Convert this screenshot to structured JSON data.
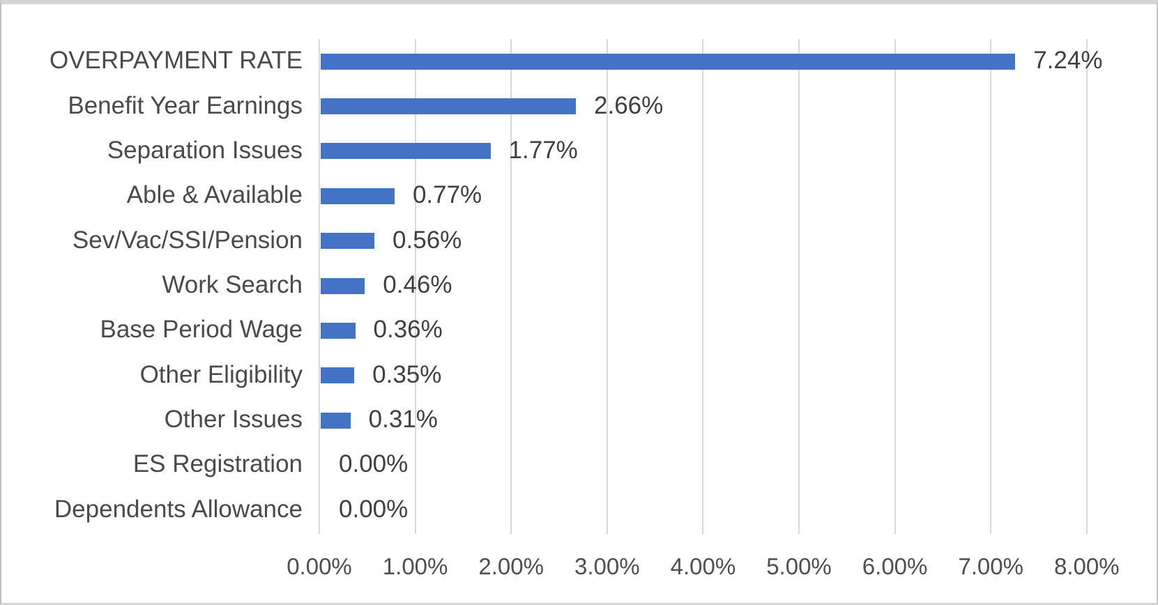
{
  "chart_data": {
    "type": "bar",
    "orientation": "horizontal",
    "title": "",
    "categories": [
      "OVERPAYMENT RATE",
      "Benefit Year Earnings",
      "Separation Issues",
      "Able & Available",
      "Sev/Vac/SSI/Pension",
      "Work Search",
      "Base Period Wage",
      "Other Eligibility",
      "Other Issues",
      "ES Registration",
      "Dependents Allowance"
    ],
    "values": [
      7.24,
      2.66,
      1.77,
      0.77,
      0.56,
      0.46,
      0.36,
      0.35,
      0.31,
      0.0,
      0.0
    ],
    "data_labels": [
      "7.24%",
      "2.66%",
      "1.77%",
      "0.77%",
      "0.56%",
      "0.46%",
      "0.36%",
      "0.35%",
      "0.31%",
      "0.00%",
      "0.00%"
    ],
    "xlabel": "",
    "ylabel": "",
    "xlim": [
      0,
      8
    ],
    "x_tick_step": 1,
    "x_tick_labels": [
      "0.00%",
      "1.00%",
      "2.00%",
      "3.00%",
      "4.00%",
      "5.00%",
      "6.00%",
      "7.00%",
      "8.00%"
    ],
    "grid": true,
    "legend": false,
    "data_labels_position": "outside-end",
    "colors": {
      "bar": "#4472C4",
      "gridline": "#d9d9d9",
      "category_text": "#4a4a4a",
      "data_label_text": "#404040",
      "axis_tick_text": "#4f4f4f",
      "background": "#ffffff",
      "frame_border": "#c4c4c4"
    }
  }
}
